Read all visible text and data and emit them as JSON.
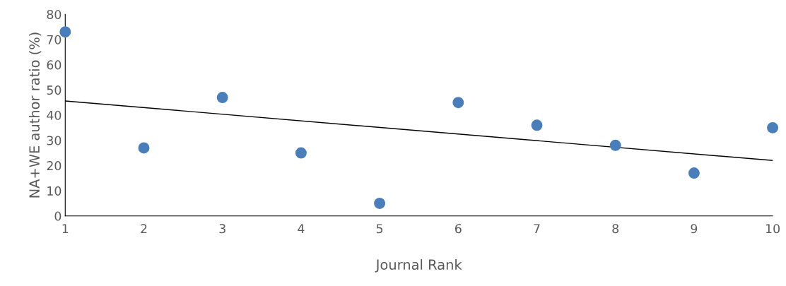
{
  "chart_data": {
    "type": "scatter",
    "xlabel": "Journal Rank",
    "ylabel": "NA+WE author ratio (%)",
    "x": [
      1,
      2,
      3,
      4,
      5,
      6,
      7,
      8,
      9,
      10
    ],
    "series": [
      {
        "color": "#4a7ebb",
        "values": [
          73,
          27,
          47,
          25,
          5,
          45,
          36,
          28,
          17,
          35
        ],
        "marker": "circle"
      },
      {
        "type": "line",
        "color": "#000000",
        "x": [
          1,
          10
        ],
        "values": [
          45.6,
          22.0
        ],
        "marker": "none",
        "line_style": "solid"
      }
    ],
    "xlim": [
      1,
      10
    ],
    "ylim": [
      0,
      80
    ],
    "xticks": [
      1,
      2,
      3,
      4,
      5,
      6,
      7,
      8,
      9,
      10
    ],
    "yticks": [
      0,
      10,
      20,
      30,
      40,
      50,
      60,
      70,
      80
    ],
    "grid": false,
    "legend": false
  }
}
